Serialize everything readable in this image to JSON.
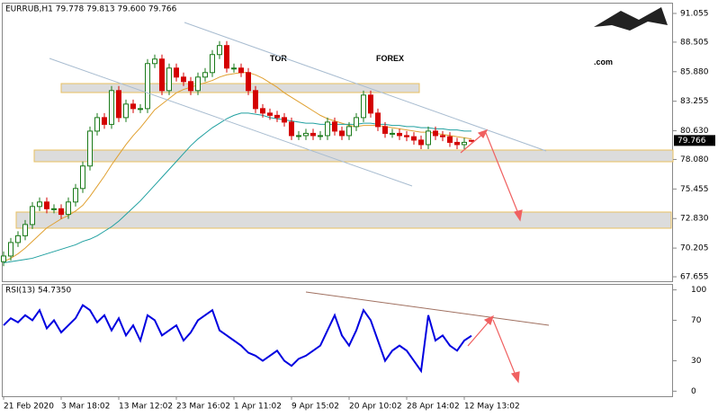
{
  "watermark": {
    "left": "TOR",
    "right": "FOREX",
    "suffix": ".com"
  },
  "chart_data": [
    {
      "type": "candlestick",
      "title": "EURRUB,H1  79.778 79.813 79.600 79.766",
      "categories": [
        "21 Feb 2020",
        null,
        null,
        null,
        null,
        null,
        null,
        null,
        "3 Mar 18:02",
        null,
        null,
        null,
        null,
        null,
        null,
        null,
        "13 Mar 12:02",
        null,
        null,
        null,
        null,
        null,
        null,
        null,
        "23 Mar 16:02",
        null,
        null,
        null,
        null,
        null,
        null,
        null,
        "1 Apr 11:02",
        null,
        null,
        null,
        null,
        null,
        null,
        null,
        "9 Apr 15:02",
        null,
        null,
        null,
        null,
        null,
        null,
        null,
        "20 Apr 10:02",
        null,
        null,
        null,
        null,
        null,
        null,
        null,
        "28 Apr 14:02",
        null,
        null,
        null,
        null,
        null,
        null,
        null,
        "12 May 13:02",
        null
      ],
      "open": [
        69.0,
        69.5,
        70.7,
        71.3,
        72.3,
        73.9,
        74.3,
        73.7,
        73.7,
        73.2,
        74.3,
        75.5,
        77.5,
        80.6,
        81.8,
        81.2,
        84.2,
        81.8,
        83.0,
        82.6,
        82.6,
        86.6,
        87.0,
        84.2,
        86.2,
        85.4,
        85.0,
        84.2,
        85.4,
        85.8,
        87.4,
        88.2,
        86.2,
        86.2,
        85.8,
        84.2,
        82.6,
        82.2,
        82.0,
        81.8,
        81.4,
        80.2,
        80.2,
        80.4,
        80.2,
        80.2,
        81.4,
        80.6,
        80.2,
        81.0,
        81.8,
        83.8,
        82.2,
        81.0,
        80.4,
        80.4,
        80.2,
        80.1,
        79.8,
        79.4,
        80.6,
        80.2,
        80.1,
        79.6,
        79.4,
        79.778
      ],
      "high": [
        69.9,
        71.1,
        71.7,
        72.7,
        74.3,
        74.7,
        74.7,
        74.1,
        74.1,
        74.7,
        75.9,
        77.9,
        81.0,
        82.2,
        82.2,
        84.6,
        84.6,
        83.4,
        83.4,
        83.0,
        87.0,
        87.4,
        87.4,
        86.6,
        86.6,
        85.8,
        85.4,
        85.8,
        86.2,
        87.8,
        88.6,
        88.6,
        86.6,
        86.6,
        86.2,
        84.6,
        83.0,
        82.6,
        82.4,
        82.2,
        81.8,
        80.6,
        80.8,
        80.8,
        80.6,
        81.8,
        81.8,
        81.0,
        81.4,
        82.2,
        84.2,
        84.2,
        82.6,
        81.4,
        80.8,
        80.8,
        80.6,
        80.5,
        80.2,
        81.0,
        81.0,
        80.6,
        80.5,
        80.0,
        80.0,
        79.813
      ],
      "low": [
        68.6,
        69.1,
        70.3,
        70.9,
        71.9,
        73.5,
        73.3,
        73.3,
        72.8,
        72.8,
        73.9,
        75.1,
        77.1,
        80.2,
        80.8,
        80.8,
        81.4,
        81.4,
        82.2,
        82.2,
        82.2,
        86.2,
        83.8,
        83.8,
        85.0,
        84.6,
        83.8,
        83.8,
        85.0,
        85.4,
        87.0,
        85.8,
        85.8,
        85.4,
        83.8,
        82.2,
        81.8,
        81.6,
        81.4,
        81.0,
        79.8,
        79.8,
        79.8,
        79.8,
        79.8,
        79.8,
        80.2,
        79.8,
        79.8,
        80.6,
        81.4,
        81.8,
        80.6,
        80.0,
        80.0,
        79.8,
        79.7,
        79.4,
        79.0,
        79.0,
        79.8,
        79.7,
        79.2,
        79.0,
        79.0,
        79.6
      ],
      "close": [
        69.5,
        70.7,
        71.3,
        72.3,
        73.9,
        74.3,
        73.7,
        73.7,
        73.2,
        74.3,
        75.5,
        77.5,
        80.6,
        81.8,
        81.2,
        84.2,
        81.8,
        83.0,
        82.6,
        82.6,
        86.6,
        87.0,
        84.2,
        86.2,
        85.4,
        85.0,
        84.2,
        85.4,
        85.8,
        87.4,
        88.2,
        86.2,
        86.2,
        85.8,
        84.2,
        82.6,
        82.2,
        82.0,
        81.8,
        81.4,
        80.2,
        80.2,
        80.4,
        80.2,
        80.2,
        81.4,
        80.6,
        80.2,
        81.0,
        81.8,
        83.8,
        82.2,
        81.0,
        80.4,
        80.4,
        80.2,
        80.1,
        79.8,
        79.4,
        80.6,
        80.2,
        80.1,
        79.6,
        79.4,
        79.6,
        79.766
      ],
      "up_color": "#1a7a1a",
      "down_color": "#d40000",
      "ma_lines": [
        {
          "color": "#e0a030",
          "values": [
            69.0,
            69.3,
            69.7,
            70.2,
            70.8,
            71.4,
            72.0,
            72.4,
            72.8,
            73.1,
            73.5,
            74.0,
            74.8,
            75.7,
            76.6,
            77.6,
            78.5,
            79.4,
            80.2,
            80.9,
            81.7,
            82.5,
            83.0,
            83.5,
            84.0,
            84.3,
            84.5,
            84.7,
            84.9,
            85.1,
            85.4,
            85.6,
            85.7,
            85.8,
            85.8,
            85.6,
            85.3,
            84.9,
            84.5,
            84.0,
            83.6,
            83.2,
            82.8,
            82.4,
            82.0,
            81.7,
            81.5,
            81.3,
            81.1,
            81.0,
            81.1,
            81.1,
            81.1,
            81.0,
            80.9,
            80.8,
            80.7,
            80.6,
            80.5,
            80.5,
            80.4,
            80.3,
            80.2,
            80.1,
            80.0,
            79.9
          ]
        },
        {
          "color": "#20a0a0",
          "values": [
            68.9,
            69.0,
            69.1,
            69.2,
            69.3,
            69.5,
            69.7,
            69.9,
            70.1,
            70.3,
            70.5,
            70.8,
            71.0,
            71.3,
            71.7,
            72.1,
            72.6,
            73.2,
            73.8,
            74.4,
            75.1,
            75.8,
            76.5,
            77.2,
            77.9,
            78.6,
            79.3,
            79.9,
            80.4,
            80.9,
            81.3,
            81.7,
            82.0,
            82.2,
            82.2,
            82.1,
            82.0,
            81.8,
            81.7,
            81.6,
            81.5,
            81.4,
            81.3,
            81.3,
            81.2,
            81.2,
            81.2,
            81.2,
            81.2,
            81.2,
            81.3,
            81.3,
            81.2,
            81.2,
            81.1,
            81.1,
            81.0,
            81.0,
            80.9,
            80.9,
            80.8,
            80.8,
            80.7,
            80.7,
            80.6,
            80.6
          ]
        }
      ],
      "ylim": [
        67.26,
        91.93
      ],
      "yticks": [
        91.055,
        88.505,
        {
          "value": 85.88,
          "label": "85.880"
        },
        83.255,
        {
          "value": 80.63,
          "label": "80.630"
        },
        {
          "value": 78.08,
          "label": "78.080"
        },
        75.455,
        {
          "value": 72.83,
          "label": "72.830"
        },
        70.205,
        67.655
      ]
    },
    {
      "type": "line",
      "title": "RSI(13) 54.7350",
      "color": "#0000e0",
      "values": [
        65,
        72,
        68,
        75,
        70,
        80,
        62,
        70,
        58,
        65,
        72,
        85,
        80,
        68,
        75,
        60,
        72,
        55,
        65,
        50,
        75,
        70,
        55,
        60,
        65,
        50,
        58,
        70,
        75,
        80,
        60,
        55,
        50,
        45,
        38,
        35,
        30,
        35,
        40,
        30,
        25,
        32,
        35,
        40,
        45,
        60,
        75,
        55,
        45,
        60,
        80,
        70,
        50,
        30,
        40,
        45,
        40,
        30,
        20,
        75,
        50,
        55,
        45,
        40,
        50,
        54.735
      ],
      "ylim": [
        -5,
        105
      ],
      "yticks": [
        100,
        70,
        30,
        0
      ]
    }
  ]
}
